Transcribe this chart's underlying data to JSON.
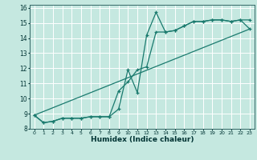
{
  "title": "",
  "xlabel": "Humidex (Indice chaleur)",
  "ylabel": "",
  "background_color": "#c5e8e0",
  "grid_color": "#ffffff",
  "line_color": "#1a7a6e",
  "xlim": [
    -0.5,
    23.5
  ],
  "ylim": [
    8,
    16.2
  ],
  "xticks": [
    0,
    1,
    2,
    3,
    4,
    5,
    6,
    7,
    8,
    9,
    10,
    11,
    12,
    13,
    14,
    15,
    16,
    17,
    18,
    19,
    20,
    21,
    22,
    23
  ],
  "yticks": [
    8,
    9,
    10,
    11,
    12,
    13,
    14,
    15,
    16
  ],
  "line1_x": [
    0,
    1,
    2,
    3,
    4,
    5,
    6,
    7,
    8,
    9,
    10,
    11,
    12,
    13,
    14,
    15,
    16,
    17,
    18,
    19,
    20,
    21,
    22,
    23
  ],
  "line1_y": [
    8.9,
    8.4,
    8.5,
    8.7,
    8.7,
    8.7,
    8.8,
    8.8,
    8.8,
    9.3,
    11.9,
    10.4,
    14.2,
    15.7,
    14.4,
    14.5,
    14.8,
    15.1,
    15.1,
    15.2,
    15.2,
    15.1,
    15.2,
    15.2
  ],
  "line2_x": [
    0,
    1,
    2,
    3,
    4,
    5,
    6,
    7,
    8,
    9,
    10,
    11,
    12,
    13,
    14,
    15,
    16,
    17,
    18,
    19,
    20,
    21,
    22,
    23
  ],
  "line2_y": [
    8.9,
    8.4,
    8.5,
    8.7,
    8.7,
    8.7,
    8.8,
    8.8,
    8.8,
    10.5,
    11.1,
    11.9,
    12.1,
    14.4,
    14.4,
    14.5,
    14.8,
    15.1,
    15.1,
    15.2,
    15.2,
    15.1,
    15.2,
    14.6
  ],
  "line3_x": [
    0,
    23
  ],
  "line3_y": [
    8.9,
    14.6
  ]
}
